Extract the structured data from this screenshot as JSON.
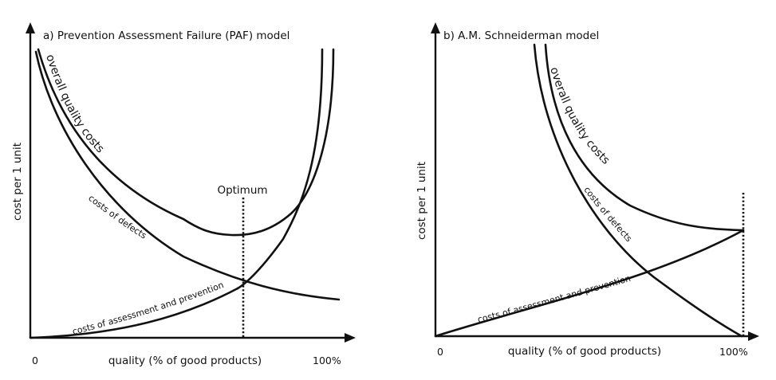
{
  "panels": [
    {
      "title": "a) Prevention Assessment Failure (PAF) model",
      "ylabel": "cost per 1 unit",
      "xlabel": "quality (% of good products)",
      "x_start": "0",
      "x_end": "100%",
      "labels": {
        "overall": "overall quality costs",
        "defects": "costs of defects",
        "assessment": "costs of assessment and prevention",
        "optimum": "Optimum"
      }
    },
    {
      "title": "b) A.M. Schneiderman model",
      "ylabel": "cost per 1 unit",
      "xlabel": "quality (% of good products)",
      "x_start": "0",
      "x_end": "100%",
      "labels": {
        "overall": "overall quality costs",
        "defects": "costs of defects",
        "assessment": "costs of assessment and prevention"
      }
    }
  ]
}
